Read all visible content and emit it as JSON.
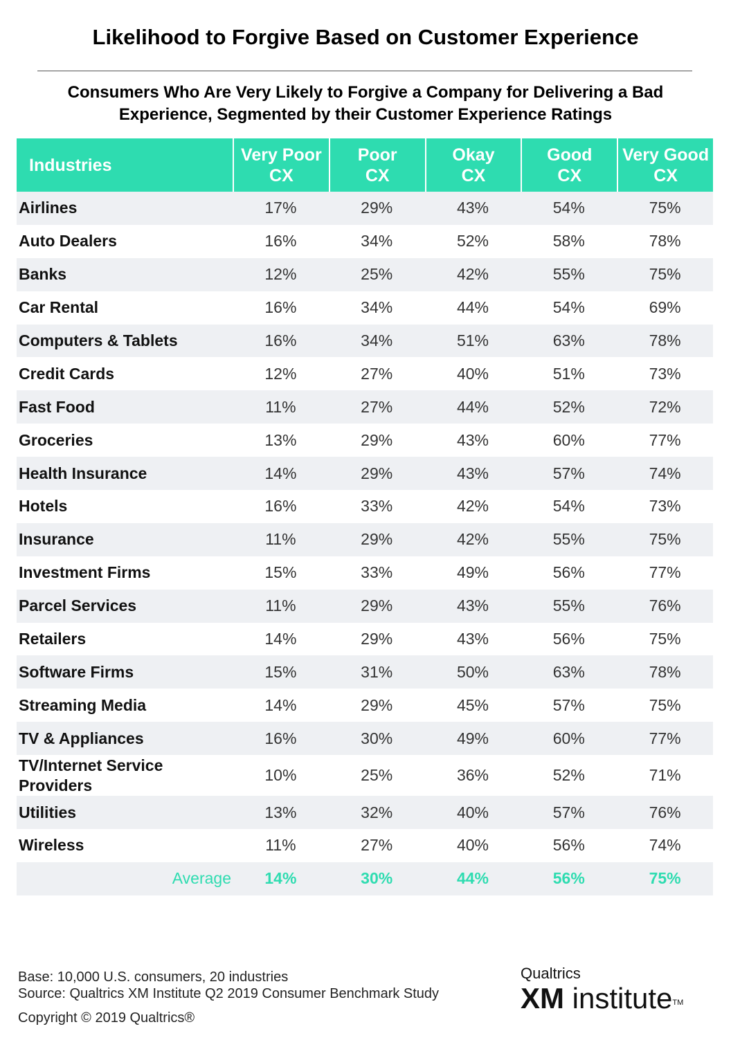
{
  "title": "Likelihood to Forgive Based on Customer Experience",
  "subtitle_line1": "Consumers Who Are Very Likely to Forgive a Company for Delivering a Bad",
  "subtitle_line2": "Experience, Segmented by their Customer Experience Ratings",
  "colors": {
    "accent": "#2edcb0",
    "stripe": "#eef0f3"
  },
  "chart_data": {
    "type": "table",
    "header_first": "Industries",
    "columns": [
      {
        "l1": "Very Poor",
        "l2": "CX"
      },
      {
        "l1": "Poor",
        "l2": "CX"
      },
      {
        "l1": "Okay",
        "l2": "CX"
      },
      {
        "l1": "Good",
        "l2": "CX"
      },
      {
        "l1": "Very Good",
        "l2": "CX"
      }
    ],
    "rows": [
      {
        "industry": "Airlines",
        "values": [
          "17%",
          "29%",
          "43%",
          "54%",
          "75%"
        ]
      },
      {
        "industry": "Auto Dealers",
        "values": [
          "16%",
          "34%",
          "52%",
          "58%",
          "78%"
        ]
      },
      {
        "industry": "Banks",
        "values": [
          "12%",
          "25%",
          "42%",
          "55%",
          "75%"
        ]
      },
      {
        "industry": "Car Rental",
        "values": [
          "16%",
          "34%",
          "44%",
          "54%",
          "69%"
        ]
      },
      {
        "industry": "Computers & Tablets",
        "values": [
          "16%",
          "34%",
          "51%",
          "63%",
          "78%"
        ]
      },
      {
        "industry": "Credit Cards",
        "values": [
          "12%",
          "27%",
          "40%",
          "51%",
          "73%"
        ]
      },
      {
        "industry": "Fast Food",
        "values": [
          "11%",
          "27%",
          "44%",
          "52%",
          "72%"
        ]
      },
      {
        "industry": "Groceries",
        "values": [
          "13%",
          "29%",
          "43%",
          "60%",
          "77%"
        ]
      },
      {
        "industry": "Health Insurance",
        "values": [
          "14%",
          "29%",
          "43%",
          "57%",
          "74%"
        ]
      },
      {
        "industry": "Hotels",
        "values": [
          "16%",
          "33%",
          "42%",
          "54%",
          "73%"
        ]
      },
      {
        "industry": "Insurance",
        "values": [
          "11%",
          "29%",
          "42%",
          "55%",
          "75%"
        ]
      },
      {
        "industry": "Investment Firms",
        "values": [
          "15%",
          "33%",
          "49%",
          "56%",
          "77%"
        ]
      },
      {
        "industry": "Parcel Services",
        "values": [
          "11%",
          "29%",
          "43%",
          "55%",
          "76%"
        ]
      },
      {
        "industry": "Retailers",
        "values": [
          "14%",
          "29%",
          "43%",
          "56%",
          "75%"
        ]
      },
      {
        "industry": "Software Firms",
        "values": [
          "15%",
          "31%",
          "50%",
          "63%",
          "78%"
        ]
      },
      {
        "industry": "Streaming Media",
        "values": [
          "14%",
          "29%",
          "45%",
          "57%",
          "75%"
        ]
      },
      {
        "industry": "TV & Appliances",
        "values": [
          "16%",
          "30%",
          "49%",
          "60%",
          "77%"
        ]
      },
      {
        "industry": "TV/Internet Service Providers",
        "values": [
          "10%",
          "25%",
          "36%",
          "52%",
          "71%"
        ]
      },
      {
        "industry": "Utilities",
        "values": [
          "13%",
          "32%",
          "40%",
          "57%",
          "76%"
        ]
      },
      {
        "industry": "Wireless",
        "values": [
          "11%",
          "27%",
          "40%",
          "56%",
          "74%"
        ]
      }
    ],
    "average": {
      "label": "Average",
      "values": [
        "14%",
        "30%",
        "44%",
        "56%",
        "75%"
      ]
    }
  },
  "footer": {
    "base": "Base: 10,000 U.S. consumers, 20 industries",
    "source": "Source: Qualtrics XM Institute Q2 2019 Consumer Benchmark Study",
    "copyright": "Copyright © 2019 Qualtrics®"
  },
  "logo": {
    "top": "Qualtrics",
    "xm": "XM",
    "word": " institute",
    "tm": "TM"
  }
}
